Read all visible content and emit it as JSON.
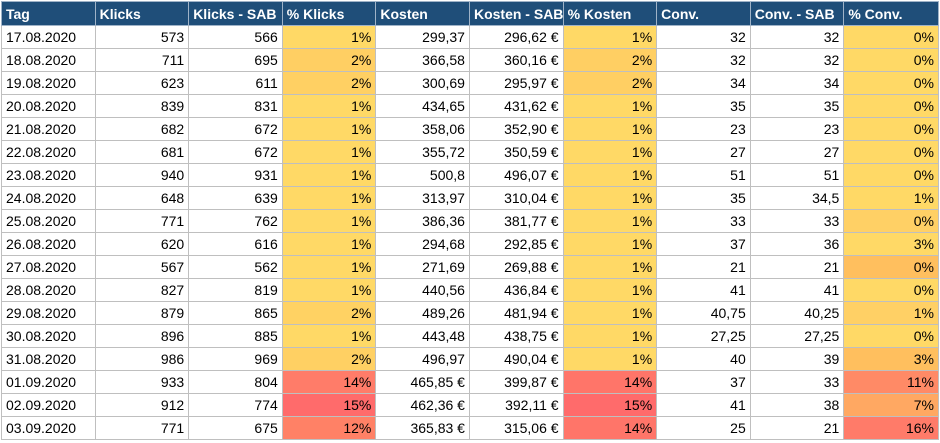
{
  "colors": {
    "header_bg": "#1f4e79",
    "header_text": "#ffffff",
    "heat_low": "#ffd966",
    "heat_mid": "#ffc05c",
    "heat_high": "#ff8966",
    "heat_max": "#ff6b6b"
  },
  "headers": [
    "Tag",
    "Klicks",
    "Klicks - SAB",
    "% Klicks",
    "Kosten",
    "Kosten - SAB",
    "% Kosten",
    "Conv.",
    "Conv. - SAB",
    "% Conv."
  ],
  "rows": [
    [
      "17.08.2020",
      "573",
      "566",
      "1%",
      "299,37",
      "296,62 €",
      "1%",
      "32",
      "32",
      "0%"
    ],
    [
      "18.08.2020",
      "711",
      "695",
      "2%",
      "366,58",
      "360,16 €",
      "2%",
      "32",
      "32",
      "0%"
    ],
    [
      "19.08.2020",
      "623",
      "611",
      "2%",
      "300,69",
      "295,97 €",
      "2%",
      "34",
      "34",
      "0%"
    ],
    [
      "20.08.2020",
      "839",
      "831",
      "1%",
      "434,65",
      "431,62 €",
      "1%",
      "35",
      "35",
      "0%"
    ],
    [
      "21.08.2020",
      "682",
      "672",
      "1%",
      "358,06",
      "352,90 €",
      "1%",
      "23",
      "23",
      "0%"
    ],
    [
      "22.08.2020",
      "681",
      "672",
      "1%",
      "355,72",
      "350,59 €",
      "1%",
      "27",
      "27",
      "0%"
    ],
    [
      "23.08.2020",
      "940",
      "931",
      "1%",
      "500,8",
      "496,07 €",
      "1%",
      "51",
      "51",
      "0%"
    ],
    [
      "24.08.2020",
      "648",
      "639",
      "1%",
      "313,97",
      "310,04 €",
      "1%",
      "35",
      "34,5",
      "1%"
    ],
    [
      "25.08.2020",
      "771",
      "762",
      "1%",
      "386,36",
      "381,77 €",
      "1%",
      "33",
      "33",
      "0%"
    ],
    [
      "26.08.2020",
      "620",
      "616",
      "1%",
      "294,68",
      "292,85 €",
      "1%",
      "37",
      "36",
      "3%"
    ],
    [
      "27.08.2020",
      "567",
      "562",
      "1%",
      "271,69",
      "269,88 €",
      "1%",
      "21",
      "21",
      "0%"
    ],
    [
      "28.08.2020",
      "827",
      "819",
      "1%",
      "440,56",
      "436,84 €",
      "1%",
      "41",
      "41",
      "0%"
    ],
    [
      "29.08.2020",
      "879",
      "865",
      "2%",
      "489,26",
      "481,94 €",
      "1%",
      "40,75",
      "40,25",
      "1%"
    ],
    [
      "30.08.2020",
      "896",
      "885",
      "1%",
      "443,48",
      "438,75 €",
      "1%",
      "27,25",
      "27,25",
      "0%"
    ],
    [
      "31.08.2020",
      "986",
      "969",
      "2%",
      "496,97",
      "490,04 €",
      "1%",
      "40",
      "39",
      "3%"
    ],
    [
      "01.09.2020",
      "933",
      "804",
      "14%",
      "465,85 €",
      "399,87 €",
      "14%",
      "37",
      "33",
      "11%"
    ],
    [
      "02.09.2020",
      "912",
      "774",
      "15%",
      "462,36 €",
      "392,11 €",
      "15%",
      "41",
      "38",
      "7%"
    ],
    [
      "03.09.2020",
      "771",
      "675",
      "12%",
      "365,83 €",
      "315,06 €",
      "14%",
      "25",
      "21",
      "16%"
    ]
  ],
  "heat": {
    "klicks": [
      "#ffd966",
      "#ffcf63",
      "#ffd063",
      "#ffd966",
      "#ffd966",
      "#ffd966",
      "#ffd966",
      "#ffd966",
      "#ffd966",
      "#ffd966",
      "#ffd966",
      "#ffd966",
      "#ffd263",
      "#ffd966",
      "#ffd063",
      "#ff7c69",
      "#ff6b6b",
      "#ff8166"
    ],
    "kosten": [
      "#ffd966",
      "#ffcf63",
      "#ffcf63",
      "#ffd966",
      "#ffd966",
      "#ffd966",
      "#ffd966",
      "#ffd966",
      "#ffd966",
      "#ffd966",
      "#ffd966",
      "#ffd966",
      "#ffd966",
      "#ffd966",
      "#ffd966",
      "#ff7569",
      "#ff6b6b",
      "#ff7569"
    ],
    "conv": [
      "#ffd966",
      "#ffd966",
      "#ffd966",
      "#ffd966",
      "#ffd966",
      "#ffd966",
      "#ffd966",
      "#ffd966",
      "#ffd065",
      "#ffd966",
      "#ffbf5e",
      "#ffd966",
      "#ffd065",
      "#ffd966",
      "#ffbf5e",
      "#ff8a66",
      "#ffa862",
      "#ff7b69"
    ]
  }
}
